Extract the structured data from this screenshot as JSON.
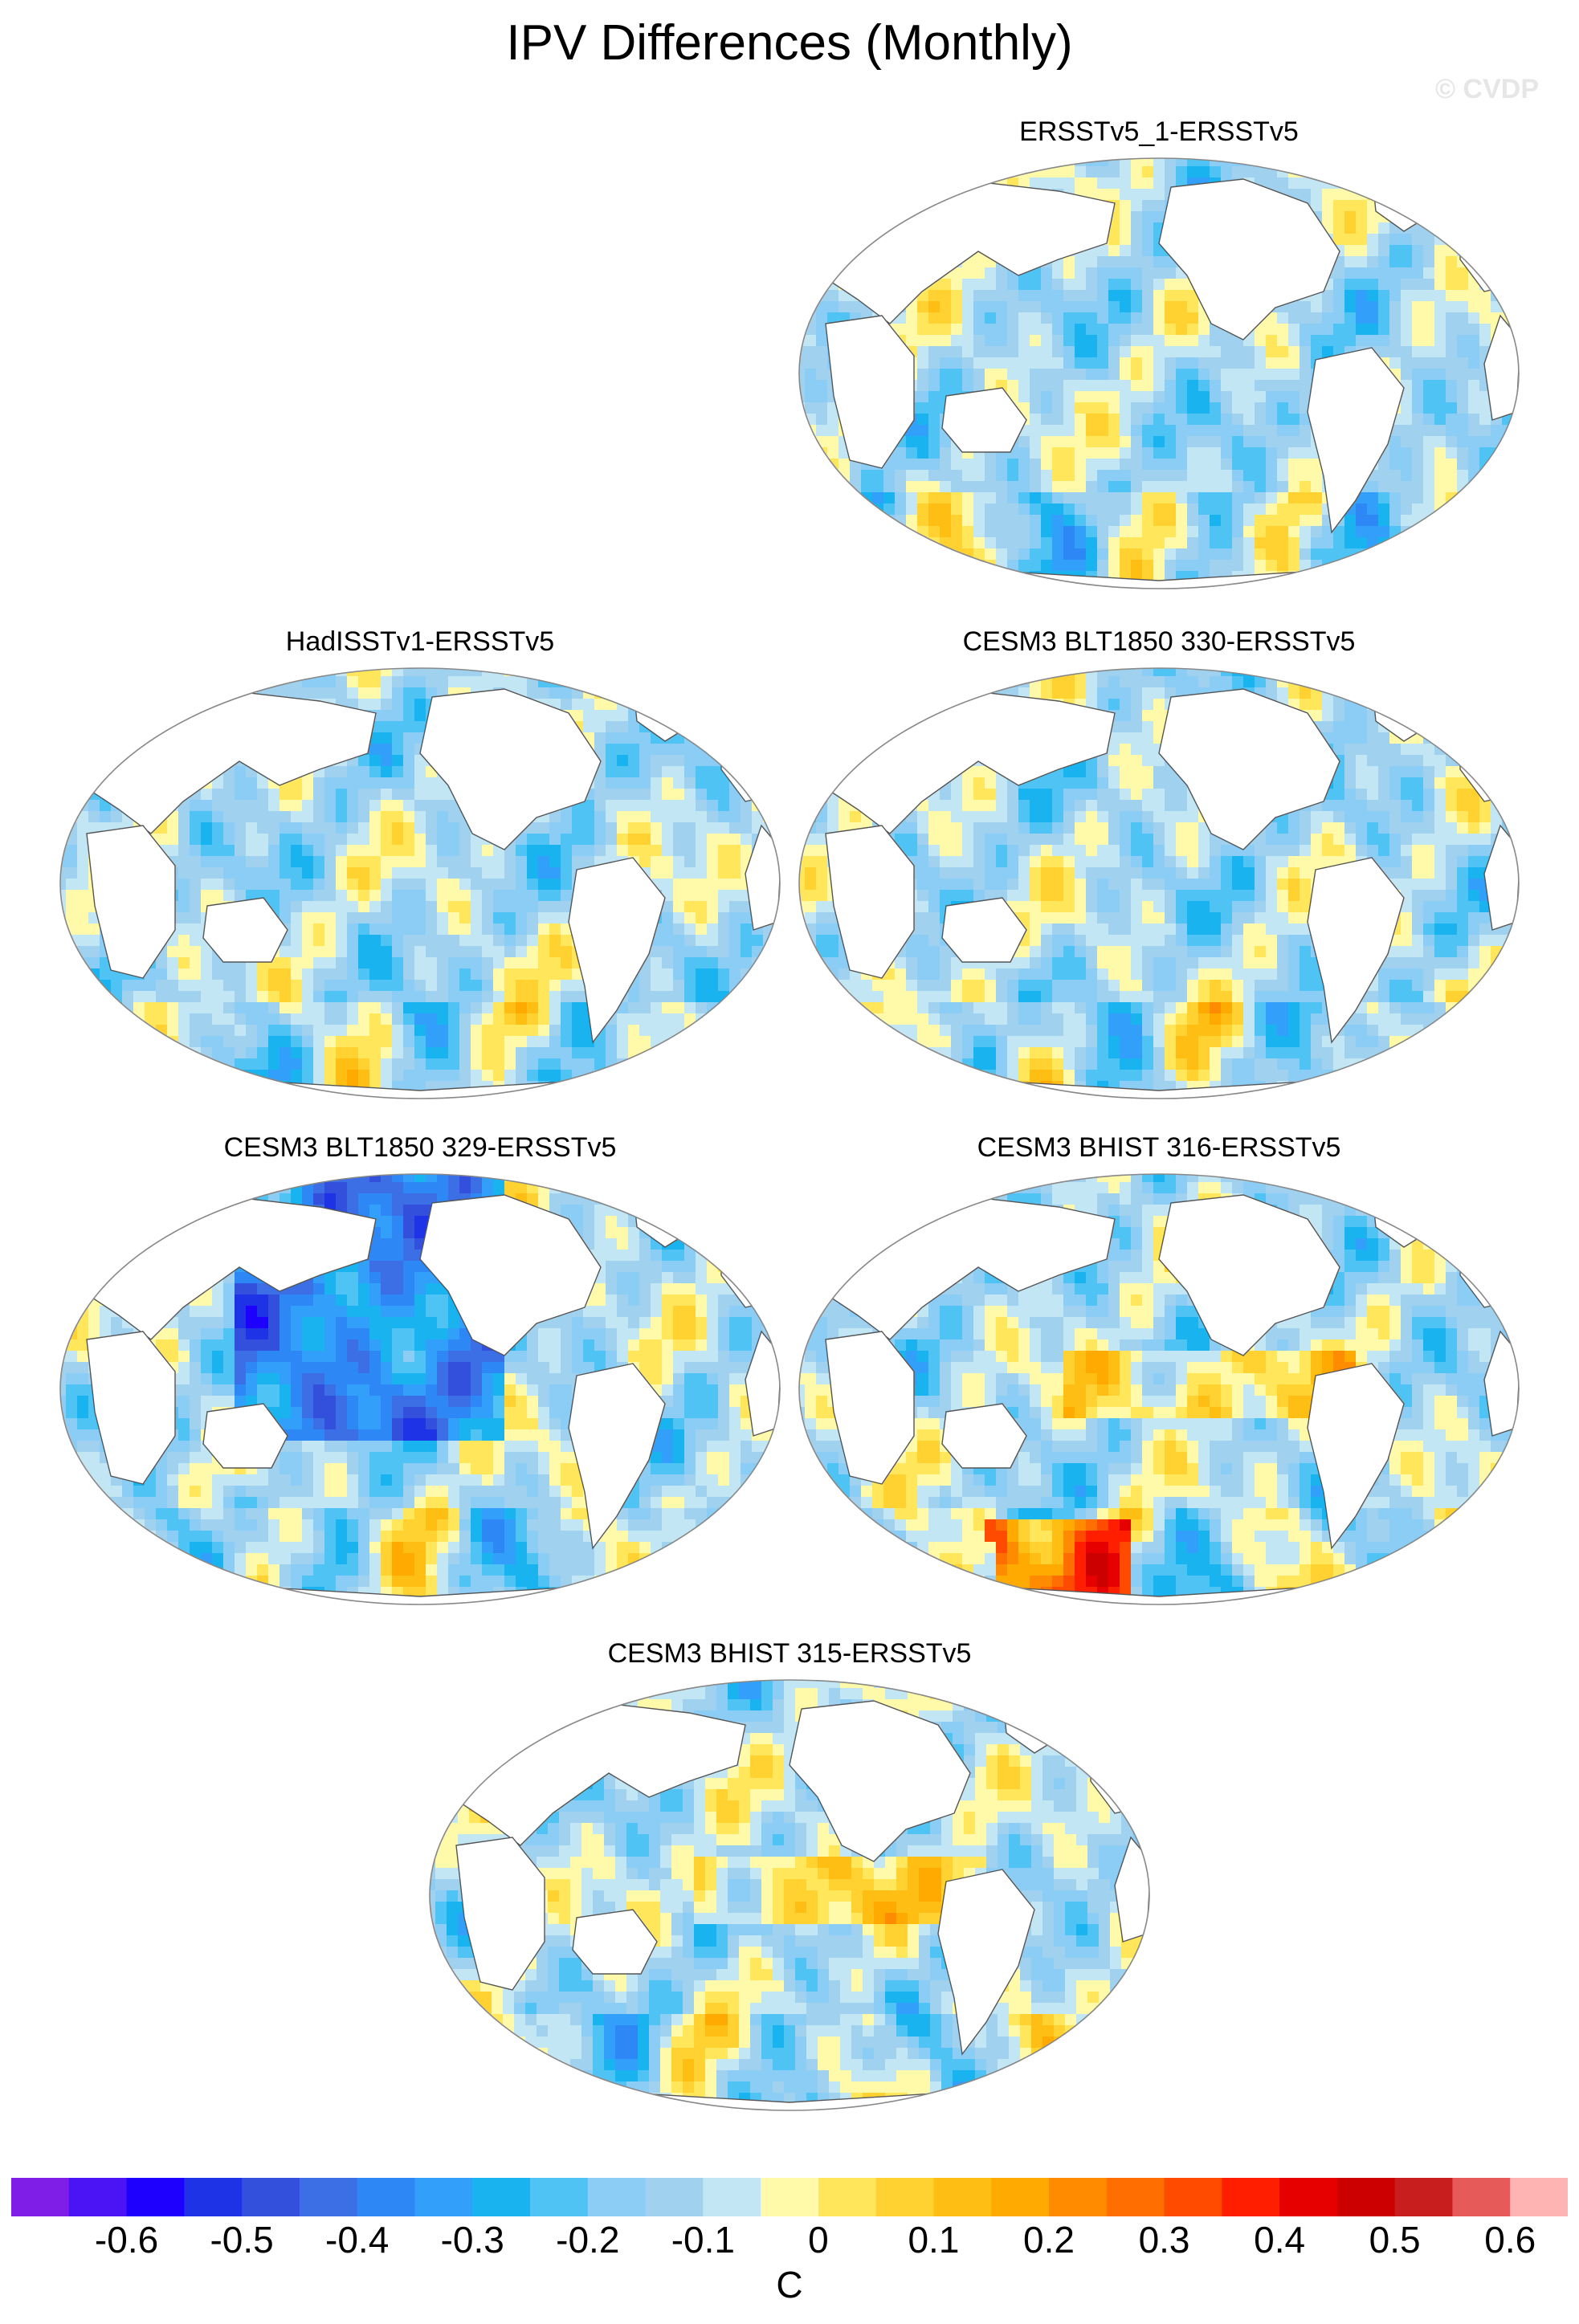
{
  "title": "IPV Differences (Monthly)",
  "watermark": "© CVDP",
  "panels": [
    {
      "label": "ERSSTv5_1-ERSSTv5"
    },
    {
      "label": "HadISSTv1-ERSSTv5"
    },
    {
      "label": "CESM3 BLT1850 330-ERSSTv5"
    },
    {
      "label": "CESM3 BLT1850 329-ERSSTv5"
    },
    {
      "label": "CESM3 BHIST 316-ERSSTv5"
    },
    {
      "label": "CESM3 BHIST 315-ERSSTv5"
    }
  ],
  "colorbar": {
    "unit": "C",
    "colors": [
      "#7e1ee6",
      "#4b14f5",
      "#1e00ff",
      "#1e32e6",
      "#3250dc",
      "#3c6ee6",
      "#2d87f5",
      "#32a0fa",
      "#19b4f0",
      "#50c3f5",
      "#8ccdf5",
      "#a0d2f0",
      "#c3e6f5",
      "#fffaaa",
      "#ffe65a",
      "#ffd232",
      "#ffbe14",
      "#ffaa00",
      "#ff8c00",
      "#ff6e00",
      "#ff4b00",
      "#ff1e00",
      "#e60000",
      "#cd0000",
      "#c81e1e",
      "#e65a5a",
      "#ffb4b4"
    ],
    "tick_labels": [
      "-0.6",
      "-0.5",
      "-0.4",
      "-0.3",
      "-0.2",
      "-0.1",
      "0",
      "0.1",
      "0.2",
      "0.3",
      "0.4",
      "0.5",
      "0.6"
    ]
  }
}
